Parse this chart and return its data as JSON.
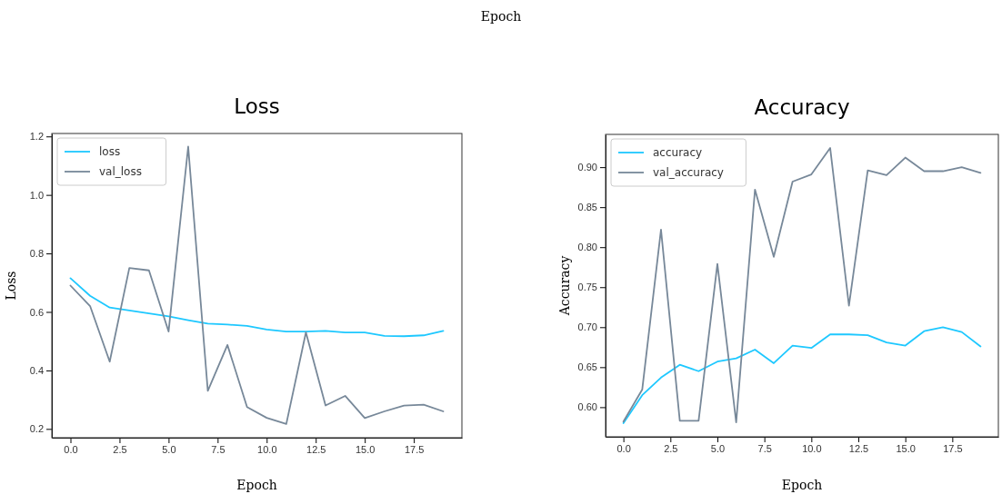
{
  "chart_data": [
    {
      "type": "line",
      "title": "Loss",
      "xlabel": "Epoch",
      "ylabel": "Loss",
      "annotations": [
        "Epoch"
      ],
      "legend": "top left",
      "grid": false,
      "x": [
        0,
        1,
        2,
        3,
        4,
        5,
        6,
        7,
        8,
        9,
        10,
        11,
        12,
        13,
        14,
        15,
        16,
        17,
        18,
        19
      ],
      "xlim": [
        -0.95,
        19.95
      ],
      "xticks": [
        {
          "value": 0,
          "label": "0.0"
        },
        {
          "value": 2.5,
          "label": "2.5"
        },
        {
          "value": 5,
          "label": "5.0"
        },
        {
          "value": 7.5,
          "label": "7.5"
        },
        {
          "value": 10,
          "label": "10.0"
        },
        {
          "value": 12.5,
          "label": "12.5"
        },
        {
          "value": 15,
          "label": "15.0"
        },
        {
          "value": 17.5,
          "label": "17.5"
        }
      ],
      "ylim": [
        0.17,
        1.21
      ],
      "yticks": [
        0.2,
        0.4,
        0.6,
        0.8,
        {
          "value": 1,
          "label": "1.0"
        },
        1.2
      ],
      "series": [
        {
          "name": "loss",
          "color": "#1ec8ff",
          "values": [
            0.715,
            0.655,
            0.615,
            0.605,
            0.595,
            0.585,
            0.572,
            0.56,
            0.557,
            0.552,
            0.54,
            0.533,
            0.533,
            0.535,
            0.53,
            0.53,
            0.518,
            0.517,
            0.52,
            0.535
          ]
        },
        {
          "name": "val_loss",
          "color": "#778899",
          "values": [
            0.69,
            0.62,
            0.43,
            0.75,
            0.742,
            0.533,
            1.165,
            0.33,
            0.487,
            0.275,
            0.238,
            0.217,
            0.53,
            0.28,
            0.313,
            0.237,
            0.26,
            0.28,
            0.283,
            0.26
          ]
        }
      ]
    },
    {
      "type": "line",
      "title": "Accuracy",
      "xlabel": "Epoch",
      "ylabel": "Accuracy",
      "legend": "top left",
      "grid": false,
      "x": [
        0,
        1,
        2,
        3,
        4,
        5,
        6,
        7,
        8,
        9,
        10,
        11,
        12,
        13,
        14,
        15,
        16,
        17,
        18,
        19
      ],
      "xlim": [
        -0.95,
        19.95
      ],
      "xticks": [
        {
          "value": 0,
          "label": "0.0"
        },
        {
          "value": 2.5,
          "label": "2.5"
        },
        {
          "value": 5,
          "label": "5.0"
        },
        {
          "value": 7.5,
          "label": "7.5"
        },
        {
          "value": 10,
          "label": "10.0"
        },
        {
          "value": 12.5,
          "label": "12.5"
        },
        {
          "value": 15,
          "label": "15.0"
        },
        {
          "value": 17.5,
          "label": "17.5"
        }
      ],
      "ylim": [
        0.563,
        0.941
      ],
      "yticks": [
        {
          "value": 0.6,
          "label": "0.60"
        },
        0.65,
        {
          "value": 0.7,
          "label": "0.70"
        },
        0.75,
        {
          "value": 0.8,
          "label": "0.80"
        },
        0.85,
        {
          "value": 0.9,
          "label": "0.90"
        }
      ],
      "series": [
        {
          "name": "accuracy",
          "color": "#1ec8ff",
          "values": [
            0.58,
            0.615,
            0.637,
            0.653,
            0.645,
            0.657,
            0.661,
            0.672,
            0.655,
            0.677,
            0.674,
            0.691,
            0.691,
            0.69,
            0.681,
            0.677,
            0.695,
            0.7,
            0.694,
            0.676
          ]
        },
        {
          "name": "val_accuracy",
          "color": "#778899",
          "values": [
            0.582,
            0.622,
            0.822,
            0.583,
            0.583,
            0.779,
            0.581,
            0.872,
            0.788,
            0.882,
            0.891,
            0.924,
            0.727,
            0.896,
            0.89,
            0.912,
            0.895,
            0.895,
            0.9,
            0.893
          ]
        }
      ]
    }
  ]
}
